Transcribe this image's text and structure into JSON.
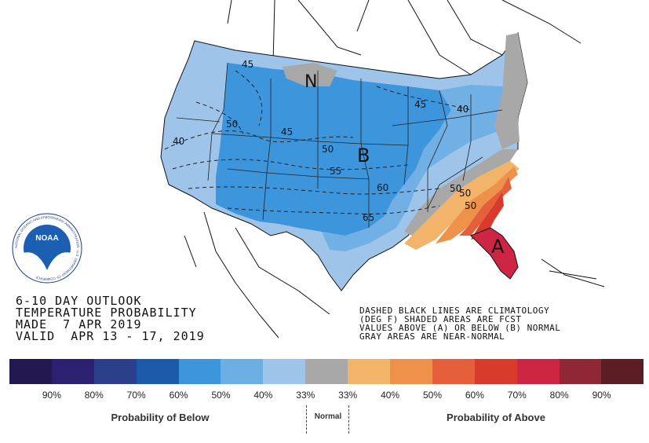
{
  "title_lines": [
    "6-10 DAY OUTLOOK",
    "TEMPERATURE PROBABILITY",
    "MADE  7 APR 2019",
    "VALID  APR 13 - 17, 2019"
  ],
  "note_lines": [
    "DASHED BLACK LINES ARE CLIMATOLOGY",
    "(DEG F) SHADED AREAS ARE FCST",
    "VALUES ABOVE (A) OR BELOW (B) NORMAL",
    "GRAY AREAS ARE NEAR-NORMAL"
  ],
  "logo": {
    "text": "NOAA",
    "ring_text": "NATIONAL OCEANIC AND ATMOSPHERIC ADMINISTRATION · U.S. DEPARTMENT OF COMMERCE"
  },
  "map_labels": {
    "below": "B",
    "above": "A",
    "normal": "N"
  },
  "isotherms": [
    "45",
    "50",
    "45",
    "40",
    "50",
    "55",
    "60",
    "65",
    "45",
    "40",
    "50",
    "50",
    "50"
  ],
  "colors": {
    "below_90": "#23184f",
    "below_80": "#2c2070",
    "below_70": "#2b3f8a",
    "below_60": "#1a5aa9",
    "below_50": "#3d95dc",
    "below_40": "#6aaee4",
    "below_33": "#9fc4e9",
    "normal": "#a8a8a8",
    "above_33": "#f1b468",
    "above_40": "#ee914b",
    "above_50": "#e5603a",
    "above_60": "#d83a2b",
    "above_70": "#cd2645",
    "above_80": "#8f2736",
    "above_90": "#5c1e24"
  },
  "legend": {
    "ticks": [
      "90%",
      "80%",
      "70%",
      "60%",
      "50%",
      "40%",
      "33%",
      "33%",
      "40%",
      "50%",
      "60%",
      "70%",
      "80%",
      "90%"
    ],
    "below_label": "Probability of Below",
    "normal_label": "Normal",
    "above_label": "Probability of Above"
  }
}
